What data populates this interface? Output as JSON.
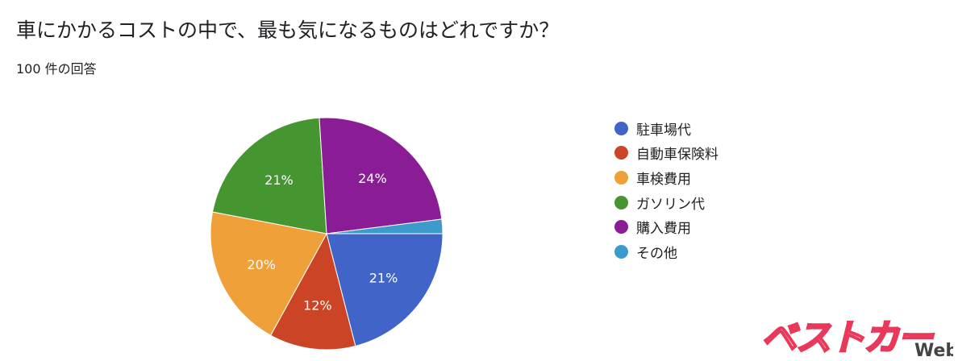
{
  "header": {
    "title": "車にかかるコストの中で、最も気になるものはどれですか？",
    "response_count": "100 件の回答"
  },
  "chart_data": {
    "type": "pie",
    "title": "車にかかるコストの中で、最も気になるものはどれですか？",
    "legend_position": "right",
    "slices": [
      {
        "label": "駐車場代",
        "value": 21,
        "display": "21%",
        "color": "#4164c8"
      },
      {
        "label": "自動車保険料",
        "value": 12,
        "display": "12%",
        "color": "#cc4426"
      },
      {
        "label": "車検費用",
        "value": 20,
        "display": "20%",
        "color": "#f0a038"
      },
      {
        "label": "ガソリン代",
        "value": 21,
        "display": "21%",
        "color": "#459630"
      },
      {
        "label": "購入費用",
        "value": 24,
        "display": "24%",
        "color": "#8a1c96"
      },
      {
        "label": "その他",
        "value": 2,
        "display": "",
        "color": "#3d9bcc"
      }
    ]
  },
  "watermark": {
    "logo_text": "ベストカー",
    "suffix": "Web",
    "color": "#e8395a"
  }
}
